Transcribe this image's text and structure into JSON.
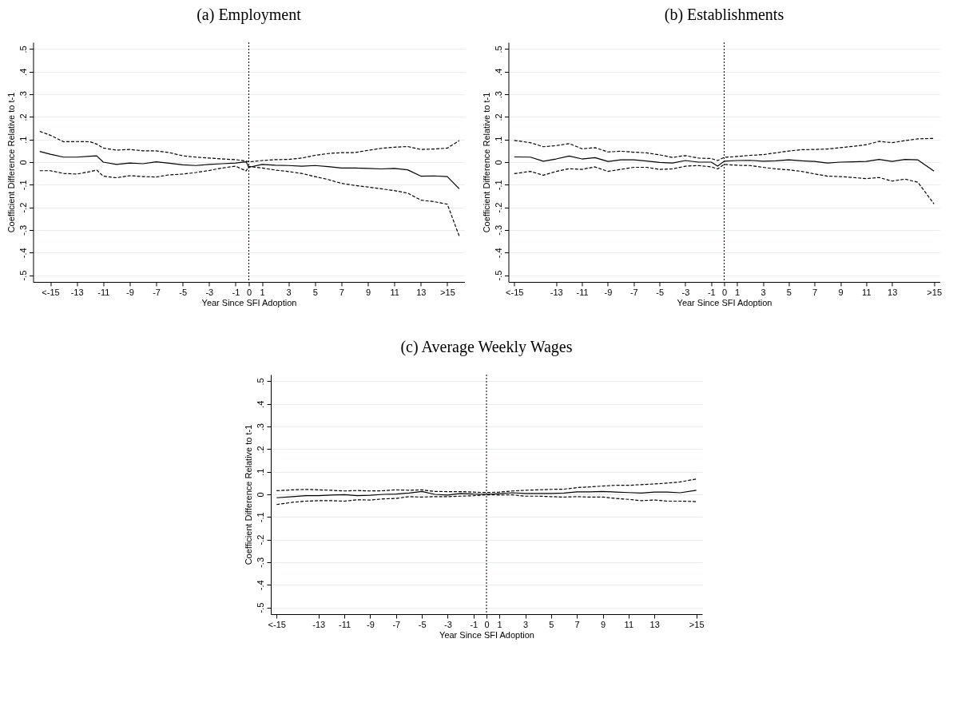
{
  "chart_data": [
    {
      "type": "line",
      "title": "(a) Employment",
      "xlabel": "Year Since SFI Adoption",
      "ylabel": "Coefficient Difference Relative to t-1",
      "grid": "y",
      "x": [
        -15.8,
        -15,
        -14,
        -13,
        -12,
        -11.5,
        -11,
        -10,
        -9,
        -8,
        -7,
        -6,
        -5,
        -4,
        -3,
        -2,
        -1,
        -0.2,
        0,
        1,
        2,
        3,
        4,
        5,
        6,
        7,
        8,
        9,
        10,
        11,
        12,
        13,
        14,
        15,
        15.9
      ],
      "series": [
        {
          "color": "#000000",
          "line_style": "solid",
          "values": [
            0.047,
            0.035,
            0.022,
            0.022,
            0.026,
            0.028,
            0.0,
            -0.01,
            -0.004,
            -0.007,
            0.001,
            -0.005,
            -0.012,
            -0.015,
            -0.01,
            -0.007,
            -0.004,
            0.001,
            -0.023,
            -0.01,
            -0.014,
            -0.015,
            -0.018,
            -0.015,
            -0.02,
            -0.026,
            -0.026,
            -0.028,
            -0.03,
            -0.028,
            -0.034,
            -0.062,
            -0.061,
            -0.064,
            -0.118
          ]
        },
        {
          "color": "#000000",
          "line_style": "dashed",
          "values": [
            0.136,
            0.119,
            0.09,
            0.091,
            0.09,
            0.08,
            0.062,
            0.053,
            0.056,
            0.05,
            0.05,
            0.042,
            0.028,
            0.022,
            0.018,
            0.014,
            0.011,
            0.005,
            0.001,
            0.007,
            0.011,
            0.012,
            0.018,
            0.03,
            0.038,
            0.042,
            0.042,
            0.052,
            0.061,
            0.066,
            0.069,
            0.056,
            0.058,
            0.062,
            0.095
          ]
        },
        {
          "color": "#000000",
          "line_style": "dashed",
          "values": [
            -0.038,
            -0.038,
            -0.05,
            -0.053,
            -0.042,
            -0.035,
            -0.062,
            -0.069,
            -0.06,
            -0.064,
            -0.066,
            -0.056,
            -0.053,
            -0.046,
            -0.037,
            -0.026,
            -0.018,
            -0.039,
            -0.019,
            -0.026,
            -0.035,
            -0.042,
            -0.05,
            -0.064,
            -0.077,
            -0.094,
            -0.103,
            -0.11,
            -0.118,
            -0.126,
            -0.137,
            -0.168,
            -0.175,
            -0.186,
            -0.327
          ]
        }
      ],
      "ref_lines": [
        {
          "axis": "x",
          "value": 0,
          "color": "#000000",
          "line_style": "dotted"
        }
      ],
      "xlim": [
        -16.3,
        16.3
      ],
      "ylim": [
        -0.53,
        0.53
      ],
      "xticks": [
        {
          "value": -15,
          "label": "<-15"
        },
        -13,
        -11,
        -9,
        -7,
        -5,
        -3,
        -1,
        0,
        1,
        3,
        5,
        7,
        9,
        11,
        13,
        {
          "value": 15,
          "label": ">15"
        }
      ],
      "yticks": [
        {
          "value": -0.5,
          "label": "-.5"
        },
        {
          "value": -0.4,
          "label": "-.4"
        },
        {
          "value": -0.3,
          "label": "-.3"
        },
        {
          "value": -0.2,
          "label": "-.2"
        },
        {
          "value": -0.1,
          "label": "-.1"
        },
        {
          "value": 0,
          "label": "0"
        },
        {
          "value": 0.1,
          "label": ".1"
        },
        {
          "value": 0.2,
          "label": ".2"
        },
        {
          "value": 0.3,
          "label": ".3"
        },
        {
          "value": 0.4,
          "label": ".4"
        },
        {
          "value": 0.5,
          "label": ".5"
        }
      ]
    },
    {
      "type": "line",
      "title": "(b) Establishments",
      "xlabel": "Year Since SFI Adoption",
      "ylabel": "Coefficient Difference Relative to t-1",
      "grid": "y",
      "x": [
        -16.25,
        -15,
        -14,
        -13,
        -12,
        -11,
        -10,
        -9,
        -8,
        -7,
        -6,
        -5,
        -4,
        -3,
        -2,
        -1,
        -0.5,
        0,
        1,
        2,
        3,
        4,
        5,
        6,
        7,
        8,
        9,
        10,
        11,
        12,
        13,
        14,
        15,
        16.25
      ],
      "series": [
        {
          "color": "#000000",
          "line_style": "solid",
          "values": [
            0.023,
            0.022,
            0.004,
            0.014,
            0.027,
            0.014,
            0.02,
            0.003,
            0.01,
            0.01,
            0.005,
            -0.001,
            -0.004,
            0.007,
            0,
            0,
            -0.018,
            0.004,
            0.007,
            0.008,
            0.004,
            0.006,
            0.01,
            0.006,
            0.003,
            -0.004,
            0,
            0.001,
            0.003,
            0.012,
            0.003,
            0.012,
            0.01,
            -0.04
          ]
        },
        {
          "color": "#000000",
          "line_style": "dashed",
          "values": [
            0.096,
            0.086,
            0.068,
            0.073,
            0.082,
            0.059,
            0.064,
            0.045,
            0.048,
            0.044,
            0.041,
            0.032,
            0.021,
            0.029,
            0.018,
            0.016,
            0.007,
            0.021,
            0.025,
            0.03,
            0.033,
            0.041,
            0.049,
            0.055,
            0.056,
            0.058,
            0.064,
            0.07,
            0.077,
            0.092,
            0.086,
            0.095,
            0.103,
            0.105
          ]
        },
        {
          "color": "#000000",
          "line_style": "dashed",
          "values": [
            -0.051,
            -0.041,
            -0.058,
            -0.041,
            -0.029,
            -0.032,
            -0.021,
            -0.041,
            -0.032,
            -0.023,
            -0.023,
            -0.032,
            -0.03,
            -0.018,
            -0.015,
            -0.021,
            -0.03,
            -0.01,
            -0.014,
            -0.015,
            -0.023,
            -0.03,
            -0.034,
            -0.041,
            -0.052,
            -0.062,
            -0.064,
            -0.068,
            -0.073,
            -0.068,
            -0.084,
            -0.075,
            -0.089,
            -0.185
          ]
        }
      ],
      "ref_lines": [
        {
          "axis": "x",
          "value": 0,
          "color": "#000000",
          "line_style": "dotted"
        }
      ],
      "xlim": [
        -16.7,
        16.7
      ],
      "ylim": [
        -0.53,
        0.53
      ],
      "xticks": [
        {
          "value": -16.25,
          "label": "<-15"
        },
        -13,
        -11,
        -9,
        -7,
        -5,
        -3,
        -1,
        0,
        1,
        3,
        5,
        7,
        9,
        11,
        13,
        {
          "value": 16.25,
          "label": ">15"
        }
      ],
      "yticks": [
        {
          "value": -0.5,
          "label": "-.5"
        },
        {
          "value": -0.4,
          "label": "-.4"
        },
        {
          "value": -0.3,
          "label": "-.3"
        },
        {
          "value": -0.2,
          "label": "-.2"
        },
        {
          "value": -0.1,
          "label": "-.1"
        },
        {
          "value": 0,
          "label": "0"
        },
        {
          "value": 0.1,
          "label": ".1"
        },
        {
          "value": 0.2,
          "label": ".2"
        },
        {
          "value": 0.3,
          "label": ".3"
        },
        {
          "value": 0.4,
          "label": ".4"
        },
        {
          "value": 0.5,
          "label": ".5"
        }
      ]
    },
    {
      "type": "line",
      "title": "(c) Average Weekly Wages",
      "xlabel": "Year Since SFI Adoption",
      "ylabel": "Coefficient Difference Relative to t-1",
      "grid": "y",
      "x": [
        -16.25,
        -15,
        -14,
        -13,
        -12,
        -11,
        -10,
        -9,
        -8,
        -7,
        -6,
        -5,
        -4,
        -3,
        -2,
        -1,
        0,
        1,
        2,
        3,
        4,
        5,
        6,
        7,
        8,
        9,
        10,
        11,
        12,
        13,
        14,
        15,
        16.25
      ],
      "series": [
        {
          "color": "#000000",
          "line_style": "solid",
          "values": [
            -0.015,
            -0.01,
            -0.006,
            -0.006,
            -0.003,
            -0.001,
            -0.006,
            -0.004,
            0,
            0.001,
            0.006,
            0.013,
            0,
            -0.003,
            0.004,
            0.001,
            0,
            0.003,
            0.007,
            0.004,
            0.004,
            0.004,
            0.006,
            0.011,
            0.011,
            0.013,
            0.01,
            0.008,
            0.006,
            0.01,
            0.01,
            0.007,
            0.018
          ]
        },
        {
          "color": "#000000",
          "line_style": "dashed",
          "values": [
            0.016,
            0.02,
            0.022,
            0.02,
            0.018,
            0.015,
            0.017,
            0.015,
            0.016,
            0.02,
            0.018,
            0.02,
            0.013,
            0.012,
            0.012,
            0.01,
            0.008,
            0.01,
            0.015,
            0.018,
            0.02,
            0.022,
            0.023,
            0.03,
            0.033,
            0.037,
            0.04,
            0.04,
            0.043,
            0.046,
            0.05,
            0.055,
            0.068
          ]
        },
        {
          "color": "#000000",
          "line_style": "dashed",
          "values": [
            -0.045,
            -0.035,
            -0.03,
            -0.028,
            -0.028,
            -0.03,
            -0.024,
            -0.025,
            -0.02,
            -0.018,
            -0.01,
            -0.012,
            -0.01,
            -0.01,
            -0.008,
            -0.006,
            -0.002,
            -0.003,
            -0.002,
            -0.008,
            -0.008,
            -0.01,
            -0.012,
            -0.01,
            -0.012,
            -0.012,
            -0.018,
            -0.022,
            -0.028,
            -0.025,
            -0.03,
            -0.03,
            -0.032
          ]
        }
      ],
      "ref_lines": [
        {
          "axis": "x",
          "value": 0,
          "color": "#000000",
          "line_style": "dotted"
        }
      ],
      "xlim": [
        -16.7,
        16.7
      ],
      "ylim": [
        -0.53,
        0.53
      ],
      "xticks": [
        {
          "value": -16.25,
          "label": "<-15"
        },
        -13,
        -11,
        -9,
        -7,
        -5,
        -3,
        -1,
        0,
        1,
        3,
        5,
        7,
        9,
        11,
        13,
        {
          "value": 16.25,
          "label": ">15"
        }
      ],
      "yticks": [
        {
          "value": -0.5,
          "label": "-.5"
        },
        {
          "value": -0.4,
          "label": "-.4"
        },
        {
          "value": -0.3,
          "label": "-.3"
        },
        {
          "value": -0.2,
          "label": "-.2"
        },
        {
          "value": -0.1,
          "label": "-.1"
        },
        {
          "value": 0,
          "label": "0"
        },
        {
          "value": 0.1,
          "label": ".1"
        },
        {
          "value": 0.2,
          "label": ".2"
        },
        {
          "value": 0.3,
          "label": ".3"
        },
        {
          "value": 0.4,
          "label": ".4"
        },
        {
          "value": 0.5,
          "label": ".5"
        }
      ]
    }
  ]
}
